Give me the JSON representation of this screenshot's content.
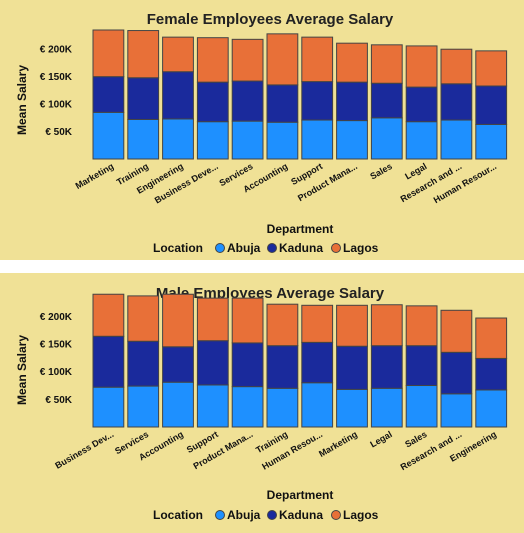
{
  "colors": {
    "background": "#f0e196",
    "abuja": "#1e90ff",
    "kaduna": "#1a2a9c",
    "lagos": "#e87038",
    "outline": "#444444"
  },
  "chart_data": [
    {
      "type": "bar",
      "stacked": true,
      "title": "Female Employees Average Salary",
      "xlabel": "Department",
      "ylabel": "Mean Salary",
      "ylim": [
        0,
        235000
      ],
      "yticks": [
        50000,
        100000,
        150000,
        200000
      ],
      "ytick_labels": [
        "€ 50K",
        "€ 100K",
        "€ 150K",
        "€ 200K"
      ],
      "legend": {
        "title": "Location",
        "placement": "bottom",
        "entries": [
          "Abuja",
          "Kaduna",
          "Lagos"
        ]
      },
      "categories": [
        "Marketing",
        "Training",
        "Engineering",
        "Business Deve...",
        "Services",
        "Accounting",
        "Support",
        "Product Mana...",
        "Sales",
        "Legal",
        "Research and ...",
        "Human Resour..."
      ],
      "series": [
        {
          "name": "Abuja",
          "values": [
            85000,
            72000,
            73000,
            68000,
            69000,
            67000,
            71000,
            70000,
            75000,
            68000,
            71000,
            63000
          ]
        },
        {
          "name": "Kaduna",
          "values": [
            65000,
            76000,
            86000,
            72000,
            73000,
            68000,
            70000,
            70000,
            63000,
            63000,
            66000,
            70000
          ]
        },
        {
          "name": "Lagos",
          "values": [
            85000,
            86000,
            63000,
            81000,
            76000,
            93000,
            81000,
            71000,
            70000,
            75000,
            63000,
            64000
          ]
        }
      ]
    },
    {
      "type": "bar",
      "stacked": true,
      "title": "Male Employees Average Salary",
      "xlabel": "Department",
      "ylabel": "Mean Salary",
      "ylim": [
        0,
        235000
      ],
      "yticks": [
        50000,
        100000,
        150000,
        200000
      ],
      "ytick_labels": [
        "€ 50K",
        "€ 100K",
        "€ 150K",
        "€ 200K"
      ],
      "legend": {
        "title": "Location",
        "placement": "bottom",
        "entries": [
          "Abuja",
          "Kaduna",
          "Lagos"
        ]
      },
      "categories": [
        "Business Dev...",
        "Services",
        "Accounting",
        "Support",
        "Product Mana...",
        "Training",
        "Human Resou...",
        "Marketing",
        "Legal",
        "Sales",
        "Research and ...",
        "Engineering"
      ],
      "series": [
        {
          "name": "Abuja",
          "values": [
            72000,
            74000,
            81000,
            76000,
            73000,
            70000,
            80000,
            68000,
            70000,
            75000,
            60000,
            67000
          ]
        },
        {
          "name": "Kaduna",
          "values": [
            92000,
            81000,
            64000,
            80000,
            79000,
            77000,
            73000,
            78000,
            77000,
            72000,
            75000,
            57000
          ]
        },
        {
          "name": "Lagos",
          "values": [
            76000,
            82000,
            95000,
            77000,
            81000,
            75000,
            67000,
            74000,
            74000,
            72000,
            76000,
            73000
          ]
        }
      ]
    }
  ]
}
